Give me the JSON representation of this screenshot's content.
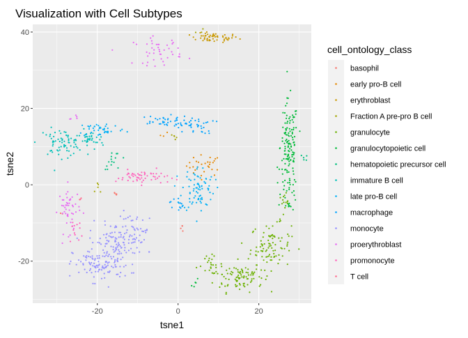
{
  "chart_data": {
    "type": "scatter",
    "title": "Visualization with Cell Subtypes",
    "xlabel": "tsne1",
    "ylabel": "tsne2",
    "xlim": [
      -36,
      33
    ],
    "ylim": [
      -31,
      42
    ],
    "x_ticks": [
      -20,
      0,
      20
    ],
    "y_ticks": [
      -20,
      0,
      20,
      40
    ],
    "x_tick_labels": [
      "-20",
      "0",
      "20"
    ],
    "y_tick_labels": [
      "-20",
      "0",
      "20",
      "40"
    ],
    "grid": true,
    "panel_background": "#ebebeb",
    "legend": {
      "title": "cell_ontology_class",
      "placement": "right"
    },
    "series": [
      {
        "name": "basophil",
        "color": "#F8766D",
        "clusters": [
          {
            "cx": -15.5,
            "cy": -2.5,
            "sx": 0.6,
            "sy": 0.3,
            "n": 5
          },
          {
            "cx": 1.5,
            "cy": -11,
            "sx": 0.4,
            "sy": 0.8,
            "n": 4
          },
          {
            "cx": -29,
            "cy": -7.5,
            "sx": 0.4,
            "sy": 0.4,
            "n": 2
          }
        ]
      },
      {
        "name": "early pro-B cell",
        "color": "#E58700",
        "clusters": [
          {
            "cx": 6.5,
            "cy": 5,
            "sx": 2.2,
            "sy": 1.4,
            "n": 30
          },
          {
            "cx": -3.5,
            "cy": 13,
            "sx": 0.5,
            "sy": 0.5,
            "n": 3
          }
        ]
      },
      {
        "name": "erythroblast",
        "color": "#C99800",
        "clusters": [
          {
            "cx": 9,
            "cy": 38.5,
            "sx": 3,
            "sy": 0.6,
            "n": 55
          }
        ]
      },
      {
        "name": "Fraction A pre-pro B cell",
        "color": "#A3A500",
        "clusters": [
          {
            "cx": -20,
            "cy": -1,
            "sx": 0.6,
            "sy": 1,
            "n": 5
          },
          {
            "cx": 5.5,
            "cy": 40.5,
            "sx": 0.6,
            "sy": 0.4,
            "n": 3
          },
          {
            "cx": -0.5,
            "cy": 12.5,
            "sx": 0.7,
            "sy": 0.5,
            "n": 5
          }
        ]
      },
      {
        "name": "granulocyte",
        "color": "#6BB100",
        "clusters": [
          {
            "cx": 15,
            "cy": -24,
            "sx": 3,
            "sy": 2,
            "n": 90
          },
          {
            "cx": 23,
            "cy": -16,
            "sx": 2.5,
            "sy": 3,
            "n": 90
          },
          {
            "cx": 8,
            "cy": -21,
            "sx": 1.5,
            "sy": 1.2,
            "n": 25
          },
          {
            "cx": 26.5,
            "cy": -6,
            "sx": 1,
            "sy": 2,
            "n": 15
          }
        ]
      },
      {
        "name": "granulocytopoietic cell",
        "color": "#00BA38",
        "clusters": [
          {
            "cx": 27.5,
            "cy": 10,
            "sx": 1.1,
            "sy": 6,
            "n": 130
          },
          {
            "cx": 27.5,
            "cy": -2,
            "sx": 1,
            "sy": 2.5,
            "n": 25
          },
          {
            "cx": 4.5,
            "cy": -26,
            "sx": 0.6,
            "sy": 0.6,
            "n": 5
          }
        ]
      },
      {
        "name": "hematopoietic precursor cell",
        "color": "#00BF7D",
        "clusters": [
          {
            "cx": -15.5,
            "cy": 6.5,
            "sx": 1.5,
            "sy": 1.2,
            "n": 15
          },
          {
            "cx": 31,
            "cy": 7,
            "sx": 0.6,
            "sy": 1,
            "n": 5
          }
        ]
      },
      {
        "name": "immature B cell",
        "color": "#00C0B8",
        "clusters": [
          {
            "cx": -29,
            "cy": 11,
            "sx": 2.8,
            "sy": 1.8,
            "n": 70
          },
          {
            "cx": -22,
            "cy": 11.5,
            "sx": 1.8,
            "sy": 1.2,
            "n": 35
          }
        ]
      },
      {
        "name": "late pro-B cell",
        "color": "#00B0F6",
        "clusters": [
          {
            "cx": -19,
            "cy": 14.5,
            "sx": 3,
            "sy": 1,
            "n": 40
          },
          {
            "cx": 5,
            "cy": -1,
            "sx": 2,
            "sy": 3,
            "n": 80
          }
        ]
      },
      {
        "name": "macrophage",
        "color": "#00A3FF",
        "clusters": [
          {
            "cx": -4,
            "cy": 16.5,
            "sx": 3.5,
            "sy": 0.8,
            "n": 40
          },
          {
            "cx": 4,
            "cy": 15.5,
            "sx": 2.5,
            "sy": 1.1,
            "n": 35
          },
          {
            "cx": -0.5,
            "cy": -5,
            "sx": 0.8,
            "sy": 1,
            "n": 12
          }
        ]
      },
      {
        "name": "monocyte",
        "color": "#9590FF",
        "clusters": [
          {
            "cx": -19,
            "cy": -21,
            "sx": 3.5,
            "sy": 2.2,
            "n": 110
          },
          {
            "cx": -16,
            "cy": -15,
            "sx": 3,
            "sy": 2.5,
            "n": 90
          },
          {
            "cx": -10,
            "cy": -13,
            "sx": 2.5,
            "sy": 3,
            "n": 50
          }
        ]
      },
      {
        "name": "proerythroblast",
        "color": "#E76BF3",
        "clusters": [
          {
            "cx": -5,
            "cy": 35,
            "sx": 3,
            "sy": 1.8,
            "n": 45
          },
          {
            "cx": -27,
            "cy": -6.5,
            "sx": 1.3,
            "sy": 3,
            "n": 50
          },
          {
            "cx": -26,
            "cy": 17.5,
            "sx": 0.6,
            "sy": 0.5,
            "n": 5
          }
        ]
      },
      {
        "name": "promonocyte",
        "color": "#FF62BC",
        "clusters": [
          {
            "cx": -9,
            "cy": 2,
            "sx": 3.2,
            "sy": 0.9,
            "n": 55
          },
          {
            "cx": -25.5,
            "cy": -12,
            "sx": 1,
            "sy": 2,
            "n": 12
          }
        ]
      },
      {
        "name": "T cell",
        "color": "#FF6C90",
        "clusters": [
          {
            "cx": -24,
            "cy": -3.5,
            "sx": 0.4,
            "sy": 0.4,
            "n": 3
          }
        ]
      }
    ]
  }
}
